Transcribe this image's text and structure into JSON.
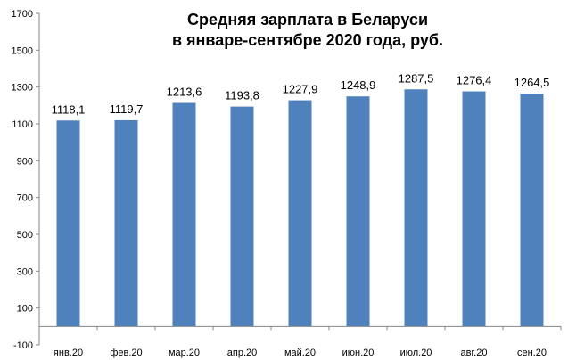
{
  "chart_data": {
    "type": "bar",
    "title": [
      "Средняя зарплата в Беларуси",
      "в январе-сентябре 2020 года, руб."
    ],
    "xlabel": "",
    "ylabel": "",
    "categories": [
      "янв.20",
      "фев.20",
      "мар.20",
      "апр.20",
      "май.20",
      "июн.20",
      "июл.20",
      "авг.20",
      "сен.20"
    ],
    "values": [
      1118.1,
      1119.7,
      1213.6,
      1193.8,
      1227.9,
      1248.9,
      1287.5,
      1276.4,
      1264.5
    ],
    "data_labels": [
      "1118,1",
      "1119,7",
      "1213,6",
      "1193,8",
      "1227,9",
      "1248,9",
      "1287,5",
      "1276,4",
      "1264,5"
    ],
    "ylim": [
      -100,
      1700
    ],
    "yticks": [
      -100,
      100,
      300,
      500,
      700,
      900,
      1100,
      1300,
      1500,
      1700
    ],
    "grid": false,
    "legend": "none",
    "colors": {
      "bar": "#4f81bd",
      "axis": "#868686"
    }
  }
}
